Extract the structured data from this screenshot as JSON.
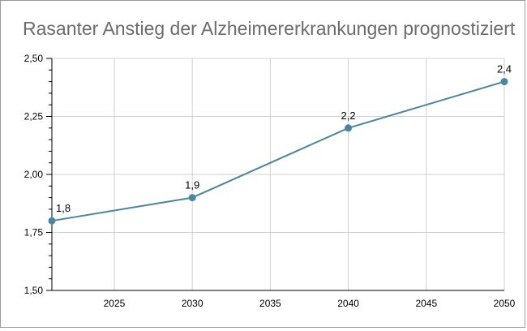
{
  "chart_data": {
    "type": "line",
    "title": "Rasanter Anstieg der Alzheimererkrankungen prognostiziert",
    "xlabel": "",
    "ylabel": "",
    "xlim": [
      2021,
      2050
    ],
    "ylim": [
      1.5,
      2.5
    ],
    "x_ticks": [
      2025,
      2030,
      2035,
      2040,
      2045,
      2050
    ],
    "x_tick_labels": [
      "2025",
      "2030",
      "2035",
      "2040",
      "2045",
      "2050"
    ],
    "y_ticks": [
      1.5,
      1.75,
      2.0,
      2.25,
      2.5
    ],
    "y_tick_labels": [
      "1,50",
      "1,75",
      "2,00",
      "2,25",
      "2,50"
    ],
    "grid": true,
    "legend": "none",
    "series": [
      {
        "color": "#4a86a0",
        "points": [
          {
            "x": 2021,
            "y": 1.8,
            "label": "1,8"
          },
          {
            "x": 2030,
            "y": 1.9,
            "label": "1,9"
          },
          {
            "x": 2040,
            "y": 2.2,
            "label": "2,2"
          },
          {
            "x": 2050,
            "y": 2.4,
            "label": "2,4"
          }
        ]
      }
    ]
  }
}
